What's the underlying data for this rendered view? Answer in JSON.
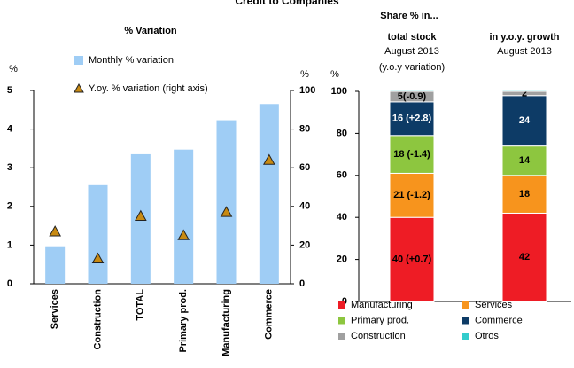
{
  "title": "Credit to Companies",
  "chart_data": [
    {
      "type": "combo",
      "title": "% Variation",
      "categories": [
        "Services",
        "Construction",
        "TOTAL",
        "Primary prod.",
        "Manufacturing",
        "Commerce"
      ],
      "series": [
        {
          "name": "Monthly % variation",
          "color": "#9fcdf5",
          "mark": "bar",
          "values": [
            0.97,
            2.55,
            3.35,
            3.47,
            4.23,
            4.65
          ]
        },
        {
          "name": "Y.oy. % variation (right axis)",
          "color": "#c88a12",
          "mark": "triangle",
          "axis": "y2",
          "values": [
            27,
            13,
            35,
            25,
            37,
            64
          ]
        }
      ],
      "ylabel": "%",
      "y2label": "%",
      "ylim": [
        0,
        5
      ],
      "yticks": [
        0,
        1,
        2,
        3,
        4,
        5
      ],
      "y2lim": [
        0,
        100
      ],
      "y2ticks": [
        0,
        20,
        40,
        60,
        80,
        100
      ]
    },
    {
      "type": "stacked_bar",
      "title": "Share % in...",
      "categories": [
        "total stock",
        "in y.o.y. growth"
      ],
      "category_notes": [
        [
          "August 2013",
          "(y.o.y variation)"
        ],
        [
          "August 2013"
        ]
      ],
      "ylabel": "%",
      "ylim": [
        0,
        100
      ],
      "yticks": [
        0,
        20,
        40,
        60,
        80,
        100
      ],
      "series": [
        {
          "name": "Manufacturing",
          "color": "#ee1c25",
          "values": [
            40,
            42
          ],
          "value_labels": [
            "40 (+0.7)",
            "42"
          ]
        },
        {
          "name": "Services",
          "color": "#f7941d",
          "values": [
            21,
            18
          ],
          "value_labels": [
            "21 (-1.2)",
            "18"
          ]
        },
        {
          "name": "Primary prod.",
          "color": "#8dc63f",
          "values": [
            18,
            14
          ],
          "value_labels": [
            "18 (-1.4)",
            "14"
          ]
        },
        {
          "name": "Commerce",
          "color": "#0d3b66",
          "values": [
            16,
            24
          ],
          "value_labels": [
            "16 (+2.8)",
            "24"
          ]
        },
        {
          "name": "Construction",
          "color": "#a0a0a0",
          "values": [
            5,
            2
          ],
          "value_labels": [
            "5(-0.9)",
            "2"
          ]
        },
        {
          "name": "Otros",
          "color": "#33cccc",
          "values": [
            0.5,
            0.5
          ],
          "value_labels": [
            null,
            null
          ]
        }
      ]
    }
  ]
}
